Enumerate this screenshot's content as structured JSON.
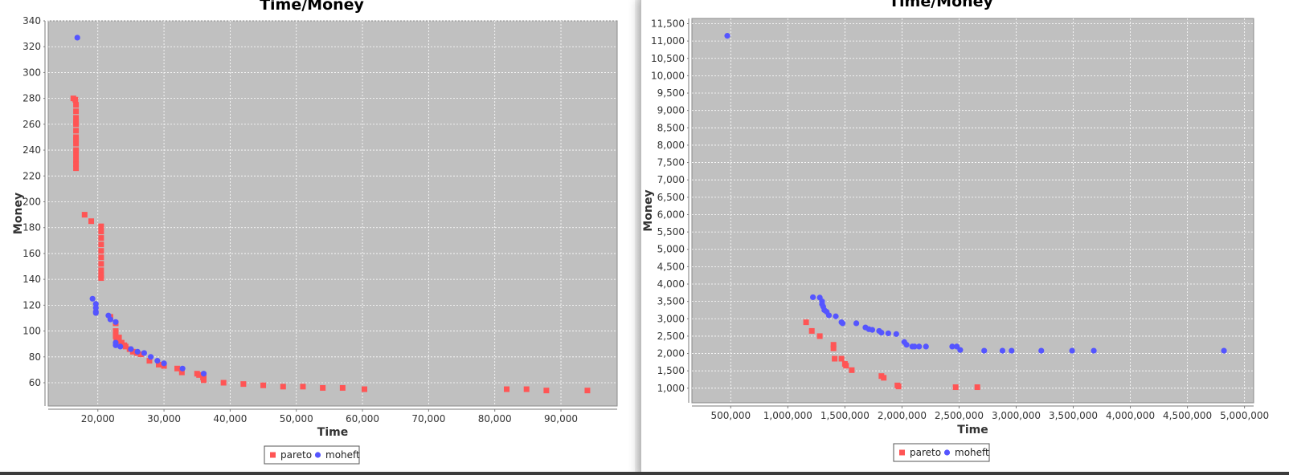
{
  "legend_colors": {
    "pareto": "#ff5555",
    "moheft": "#5555ff"
  },
  "plot_background": "#c0c0c0",
  "chart_data": [
    {
      "type": "scatter",
      "title": "Time/Money",
      "xlabel": "Time",
      "ylabel": "Money",
      "xlim": [
        12500,
        98500
      ],
      "ylim": [
        42,
        340
      ],
      "xticks": [
        20000,
        30000,
        40000,
        50000,
        60000,
        70000,
        80000,
        90000
      ],
      "yticks": [
        60,
        80,
        100,
        120,
        140,
        160,
        180,
        200,
        220,
        240,
        260,
        280,
        300,
        320,
        340
      ],
      "grid": true,
      "legend_position": "bottom-center",
      "series": [
        {
          "name": "pareto",
          "marker": "square",
          "color": "#ff5555",
          "x": [
            16300,
            16600,
            16700,
            16700,
            16700,
            16700,
            16700,
            16700,
            16700,
            16700,
            16700,
            16700,
            16700,
            16700,
            16700,
            16700,
            18000,
            19000,
            20500,
            20500,
            20500,
            20500,
            20500,
            20500,
            20500,
            20500,
            20500,
            20500,
            21900,
            22700,
            22700,
            22700,
            22800,
            23200,
            23600,
            24000,
            24200,
            24800,
            25300,
            25900,
            26500,
            27800,
            29200,
            30000,
            32000,
            32700,
            35000,
            35300,
            35900,
            36000,
            36000,
            39000,
            42000,
            45000,
            48000,
            51000,
            54000,
            57000,
            60300,
            81800,
            84800,
            87800,
            94000
          ],
          "y": [
            280,
            279,
            275,
            270,
            265,
            260,
            255,
            250,
            245,
            240,
            236,
            232,
            229,
            226,
            262,
            248,
            190,
            185,
            181,
            177,
            172,
            167,
            162,
            157,
            152,
            147,
            143,
            141,
            111,
            106,
            100,
            96,
            92,
            95,
            91,
            89,
            88,
            86,
            84,
            83,
            82,
            77,
            74,
            73,
            71,
            68,
            67,
            66,
            64,
            62,
            66,
            60,
            59,
            58,
            57,
            57,
            56,
            56,
            55,
            55,
            55,
            54,
            54
          ]
        },
        {
          "name": "moheft",
          "marker": "circle",
          "color": "#5555ff",
          "x": [
            16900,
            19200,
            19700,
            19700,
            19700,
            19700,
            21600,
            21900,
            22700,
            22700,
            22700,
            23400,
            25000,
            26000,
            27000,
            28000,
            29000,
            30000,
            32800,
            36000
          ],
          "y": [
            327,
            125,
            121,
            118,
            115,
            114,
            112,
            109,
            107,
            91,
            89,
            88,
            86,
            84,
            83,
            80,
            77,
            75,
            71,
            67
          ]
        }
      ]
    },
    {
      "type": "scatter",
      "title": "Time/Money",
      "xlabel": "Time",
      "ylabel": "Money",
      "xlim": [
        160000,
        5080000
      ],
      "ylim": [
        580,
        11650
      ],
      "xticks": [
        500000,
        1000000,
        1500000,
        2000000,
        2500000,
        3000000,
        3500000,
        4000000,
        4500000,
        5000000
      ],
      "yticks": [
        1000,
        1500,
        2000,
        2500,
        3000,
        3500,
        4000,
        4500,
        5000,
        5500,
        6000,
        6500,
        7000,
        7500,
        8000,
        8500,
        9000,
        9500,
        10000,
        10500,
        11000,
        11500
      ],
      "grid": true,
      "legend_position": "bottom-center",
      "series": [
        {
          "name": "pareto",
          "marker": "square",
          "color": "#ff5555",
          "x": [
            1160000,
            1210000,
            1280000,
            1400000,
            1400000,
            1410000,
            1470000,
            1500000,
            1510000,
            1560000,
            1820000,
            1840000,
            1960000,
            1970000,
            2470000,
            2660000
          ],
          "y": [
            2900,
            2650,
            2500,
            2250,
            2150,
            1850,
            1850,
            1700,
            1650,
            1520,
            1350,
            1300,
            1080,
            1050,
            1030,
            1030
          ]
        },
        {
          "name": "moheft",
          "marker": "circle",
          "color": "#5555ff",
          "x": [
            470000,
            1220000,
            1280000,
            1300000,
            1300000,
            1310000,
            1320000,
            1340000,
            1360000,
            1420000,
            1470000,
            1480000,
            1600000,
            1680000,
            1710000,
            1740000,
            1800000,
            1820000,
            1880000,
            1950000,
            2020000,
            2040000,
            2090000,
            2110000,
            2150000,
            2210000,
            2440000,
            2480000,
            2510000,
            2720000,
            2880000,
            2960000,
            3220000,
            3490000,
            3680000,
            4820000
          ],
          "y": [
            11150,
            3620,
            3610,
            3500,
            3420,
            3350,
            3250,
            3200,
            3100,
            3070,
            2900,
            2870,
            2870,
            2750,
            2700,
            2680,
            2650,
            2600,
            2580,
            2560,
            2330,
            2250,
            2200,
            2200,
            2200,
            2200,
            2200,
            2200,
            2100,
            2080,
            2080,
            2080,
            2080,
            2080,
            2080,
            2080
          ]
        }
      ]
    }
  ]
}
